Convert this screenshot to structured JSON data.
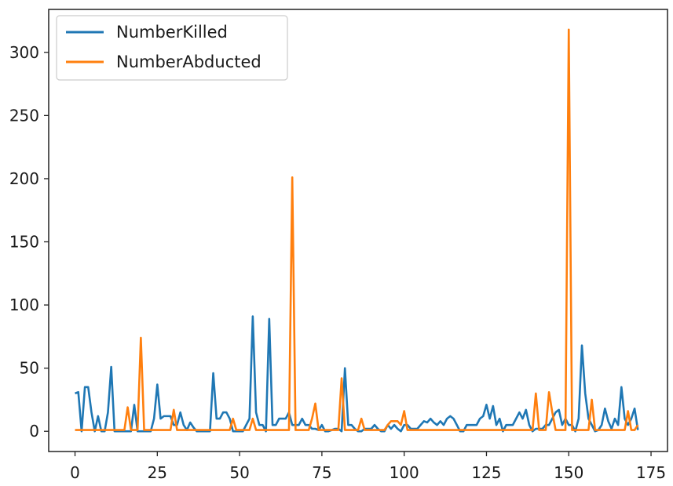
{
  "chart_data": {
    "type": "line",
    "title": "",
    "xlabel": "",
    "ylabel": "",
    "xlim": [
      -8,
      180
    ],
    "ylim": [
      -16,
      334
    ],
    "xticks": [
      0,
      25,
      50,
      75,
      100,
      125,
      150,
      175
    ],
    "yticks": [
      0,
      50,
      100,
      150,
      200,
      250,
      300
    ],
    "grid": false,
    "legend_position": "upper-left",
    "colors": {
      "NumberKilled": "#1f77b4",
      "NumberAbducted": "#ff7f0e"
    },
    "series": [
      {
        "name": "NumberKilled",
        "values": [
          30,
          31,
          0,
          35,
          35,
          15,
          0,
          12,
          0,
          0,
          15,
          51,
          0,
          0,
          0,
          0,
          0,
          0,
          21,
          0,
          0,
          0,
          0,
          0,
          10,
          37,
          10,
          12,
          12,
          12,
          5,
          5,
          15,
          5,
          1,
          7,
          3,
          0,
          0,
          0,
          0,
          0,
          46,
          10,
          10,
          15,
          15,
          10,
          0,
          0,
          0,
          0,
          5,
          10,
          91,
          15,
          5,
          5,
          0,
          89,
          5,
          5,
          10,
          10,
          10,
          15,
          5,
          5,
          5,
          10,
          5,
          5,
          2,
          2,
          1,
          5,
          0,
          0,
          1,
          2,
          2,
          0,
          50,
          5,
          5,
          2,
          0,
          0,
          2,
          2,
          2,
          5,
          2,
          0,
          0,
          5,
          2,
          5,
          2,
          0,
          5,
          5,
          2,
          2,
          2,
          5,
          8,
          7,
          10,
          7,
          5,
          8,
          5,
          10,
          12,
          10,
          5,
          0,
          0,
          5,
          5,
          5,
          5,
          10,
          12,
          21,
          10,
          20,
          5,
          10,
          0,
          5,
          5,
          5,
          10,
          15,
          10,
          17,
          5,
          0,
          2,
          2,
          2,
          5,
          5,
          10,
          15,
          17,
          5,
          10,
          5,
          5,
          0,
          10,
          68,
          30,
          10,
          5,
          0,
          1,
          5,
          18,
          8,
          2,
          10,
          5,
          35,
          10,
          5,
          10,
          18,
          1
        ]
      },
      {
        "name": "NumberAbducted",
        "values": [
          1,
          1,
          1,
          1,
          1,
          1,
          1,
          1,
          1,
          1,
          1,
          1,
          1,
          1,
          1,
          1,
          19,
          1,
          1,
          1,
          74,
          1,
          1,
          1,
          1,
          1,
          1,
          1,
          1,
          1,
          17,
          1,
          1,
          1,
          1,
          1,
          1,
          1,
          1,
          1,
          1,
          1,
          1,
          1,
          1,
          1,
          1,
          1,
          10,
          1,
          1,
          1,
          1,
          1,
          10,
          1,
          1,
          1,
          1,
          1,
          1,
          1,
          1,
          1,
          1,
          1,
          201,
          1,
          1,
          1,
          1,
          1,
          10,
          22,
          1,
          1,
          1,
          1,
          1,
          1,
          1,
          42,
          1,
          1,
          1,
          1,
          1,
          10,
          1,
          1,
          1,
          1,
          1,
          1,
          1,
          5,
          8,
          8,
          8,
          5,
          16,
          1,
          1,
          1,
          1,
          1,
          1,
          1,
          1,
          1,
          1,
          1,
          1,
          1,
          1,
          1,
          1,
          1,
          1,
          1,
          1,
          1,
          1,
          1,
          1,
          1,
          1,
          1,
          1,
          1,
          1,
          1,
          1,
          1,
          1,
          1,
          1,
          1,
          1,
          1,
          30,
          1,
          1,
          1,
          31,
          15,
          1,
          1,
          1,
          1,
          318,
          1,
          1,
          1,
          1,
          1,
          1,
          25,
          1,
          1,
          1,
          1,
          1,
          1,
          1,
          1,
          1,
          1,
          16,
          1,
          1,
          5
        ]
      }
    ]
  }
}
